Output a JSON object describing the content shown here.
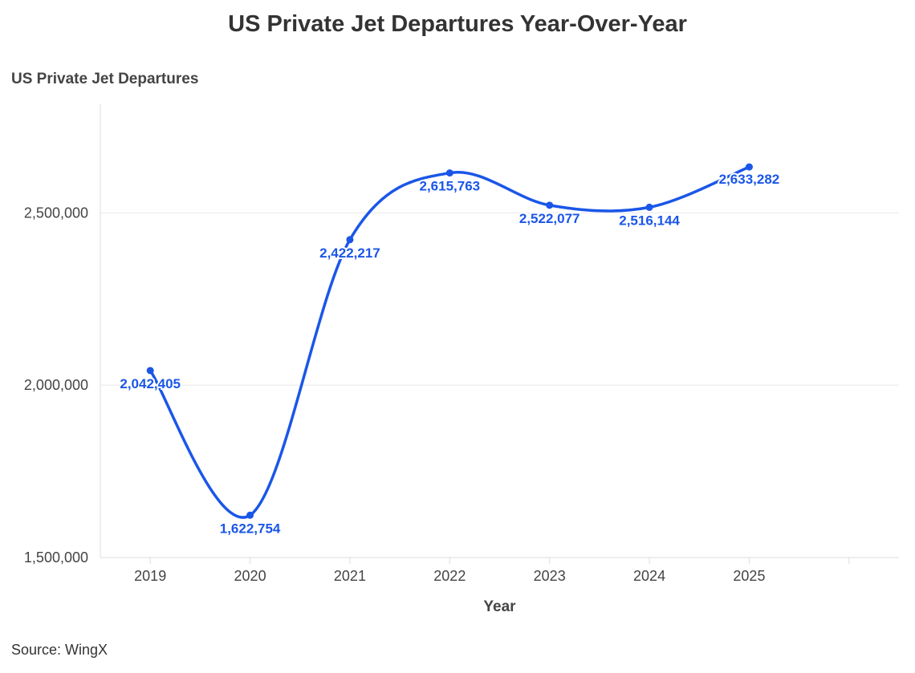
{
  "chart_data": {
    "type": "line",
    "title": "US Private Jet Departures Year-Over-Year",
    "ylabel": "US Private Jet Departures",
    "xlabel": "Year",
    "categories": [
      "2019",
      "2020",
      "2021",
      "2022",
      "2023",
      "2024",
      "2025"
    ],
    "series": [
      {
        "values": [
          2042405,
          1622754,
          2422217,
          2615763,
          2522077,
          2516144,
          2633282
        ]
      }
    ],
    "data_labels": [
      "2,042,405",
      "1,622,754",
      "2,422,217",
      "2,615,763",
      "2,522,077",
      "2,516,144",
      "2,633,282"
    ],
    "yticks": [
      1500000,
      2000000,
      2500000
    ],
    "ytick_labels": [
      "1,500,000",
      "2,000,000",
      "2,500,000"
    ],
    "ylim": [
      1500000,
      2815000
    ],
    "xlim": [
      2018.5,
      2026.5
    ],
    "grid": true,
    "line_color": "#1a56e8",
    "source": "Source: WingX"
  }
}
